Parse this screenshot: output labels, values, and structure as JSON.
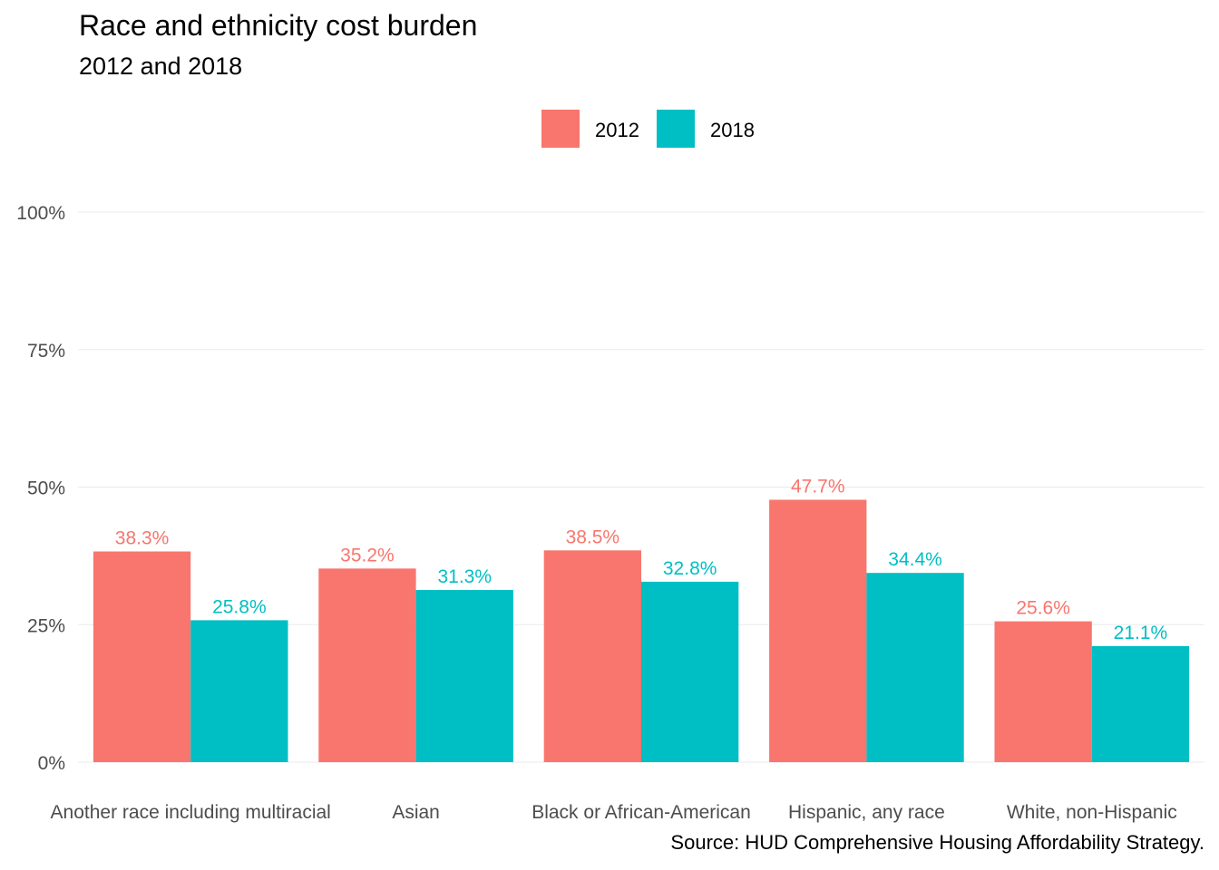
{
  "title": "Race and ethnicity cost burden",
  "subtitle": "2012 and 2018",
  "caption": "Source: HUD Comprehensive Housing Affordability Strategy.",
  "colors": {
    "2012": "#F8766D",
    "2018": "#00BFC4",
    "grid": "#ebebeb",
    "axis_text": "#4d4d4d"
  },
  "chart_data": {
    "type": "bar",
    "categories": [
      "Another race including multiracial",
      "Asian",
      "Black or African-American",
      "Hispanic, any race",
      "White, non-Hispanic"
    ],
    "series": [
      {
        "name": "2012",
        "values": [
          38.3,
          35.2,
          38.5,
          47.7,
          25.6
        ],
        "labels": [
          "38.3%",
          "35.2%",
          "38.5%",
          "47.7%",
          "25.6%"
        ]
      },
      {
        "name": "2018",
        "values": [
          25.8,
          31.3,
          32.8,
          34.4,
          21.1
        ],
        "labels": [
          "25.8%",
          "31.3%",
          "32.8%",
          "34.4%",
          "21.1%"
        ]
      }
    ],
    "ylim": [
      0,
      100
    ],
    "yticks": [
      0,
      25,
      50,
      75,
      100
    ],
    "ytick_labels": [
      "0%",
      "25%",
      "50%",
      "75%",
      "100%"
    ],
    "legend": "top-center",
    "grid": true
  }
}
